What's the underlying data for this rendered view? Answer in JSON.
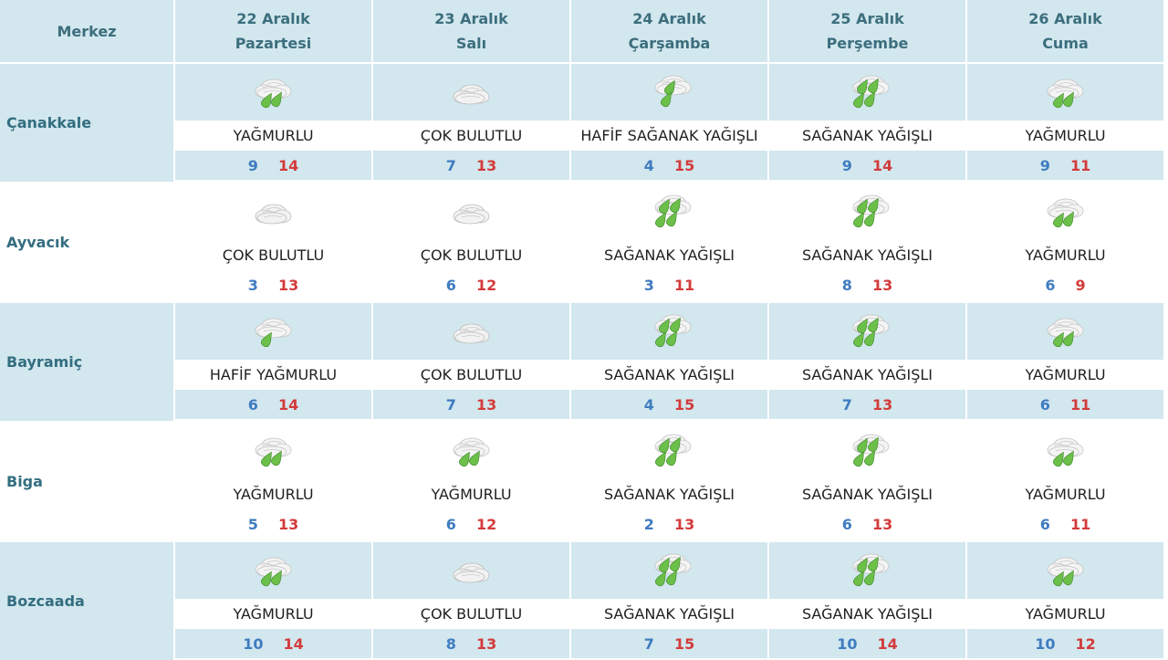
{
  "header": {
    "corner": "Merkez",
    "days": [
      {
        "date": "22 Aralık",
        "weekday": "Pazartesi"
      },
      {
        "date": "23 Aralık",
        "weekday": "Salı"
      },
      {
        "date": "24 Aralık",
        "weekday": "Çarşamba"
      },
      {
        "date": "25 Aralık",
        "weekday": "Perşembe"
      },
      {
        "date": "26 Aralık",
        "weekday": "Cuma"
      }
    ]
  },
  "colors": {
    "header_bg": "#d2e7ee",
    "min_temp": "#3f7cc0",
    "max_temp": "#d33b3b",
    "rain_drop": "#6cc04a"
  },
  "rows": [
    {
      "city": "Çanakkale",
      "days": [
        {
          "icon": "rain-icon",
          "condition": "YAĞMURLU",
          "min": "9",
          "max": "14"
        },
        {
          "icon": "cloudy-icon",
          "condition": "ÇOK BULUTLU",
          "min": "7",
          "max": "13"
        },
        {
          "icon": "light-shower-icon",
          "condition": "HAFİF SAĞANAK YAĞIŞLI",
          "min": "4",
          "max": "15"
        },
        {
          "icon": "shower-icon",
          "condition": "SAĞANAK YAĞIŞLI",
          "min": "9",
          "max": "14"
        },
        {
          "icon": "rain-icon",
          "condition": "YAĞMURLU",
          "min": "9",
          "max": "11"
        }
      ]
    },
    {
      "city": "Ayvacık",
      "days": [
        {
          "icon": "cloudy-icon",
          "condition": "ÇOK BULUTLU",
          "min": "3",
          "max": "13"
        },
        {
          "icon": "cloudy-icon",
          "condition": "ÇOK BULUTLU",
          "min": "6",
          "max": "12"
        },
        {
          "icon": "shower-icon",
          "condition": "SAĞANAK YAĞIŞLI",
          "min": "3",
          "max": "11"
        },
        {
          "icon": "shower-icon",
          "condition": "SAĞANAK YAĞIŞLI",
          "min": "8",
          "max": "13"
        },
        {
          "icon": "rain-icon",
          "condition": "YAĞMURLU",
          "min": "6",
          "max": "9"
        }
      ]
    },
    {
      "city": "Bayramiç",
      "days": [
        {
          "icon": "light-rain-icon",
          "condition": "HAFİF YAĞMURLU",
          "min": "6",
          "max": "14"
        },
        {
          "icon": "cloudy-icon",
          "condition": "ÇOK BULUTLU",
          "min": "7",
          "max": "13"
        },
        {
          "icon": "shower-icon",
          "condition": "SAĞANAK YAĞIŞLI",
          "min": "4",
          "max": "15"
        },
        {
          "icon": "shower-icon",
          "condition": "SAĞANAK YAĞIŞLI",
          "min": "7",
          "max": "13"
        },
        {
          "icon": "rain-icon",
          "condition": "YAĞMURLU",
          "min": "6",
          "max": "11"
        }
      ]
    },
    {
      "city": "Biga",
      "days": [
        {
          "icon": "rain-icon",
          "condition": "YAĞMURLU",
          "min": "5",
          "max": "13"
        },
        {
          "icon": "rain-icon",
          "condition": "YAĞMURLU",
          "min": "6",
          "max": "12"
        },
        {
          "icon": "shower-icon",
          "condition": "SAĞANAK YAĞIŞLI",
          "min": "2",
          "max": "13"
        },
        {
          "icon": "shower-icon",
          "condition": "SAĞANAK YAĞIŞLI",
          "min": "6",
          "max": "13"
        },
        {
          "icon": "rain-icon",
          "condition": "YAĞMURLU",
          "min": "6",
          "max": "11"
        }
      ]
    },
    {
      "city": "Bozcaada",
      "days": [
        {
          "icon": "rain-icon",
          "condition": "YAĞMURLU",
          "min": "10",
          "max": "14"
        },
        {
          "icon": "cloudy-icon",
          "condition": "ÇOK BULUTLU",
          "min": "8",
          "max": "13"
        },
        {
          "icon": "shower-icon",
          "condition": "SAĞANAK YAĞIŞLI",
          "min": "7",
          "max": "15"
        },
        {
          "icon": "shower-icon",
          "condition": "SAĞANAK YAĞIŞLI",
          "min": "10",
          "max": "14"
        },
        {
          "icon": "rain-icon",
          "condition": "YAĞMURLU",
          "min": "10",
          "max": "12"
        }
      ]
    }
  ]
}
